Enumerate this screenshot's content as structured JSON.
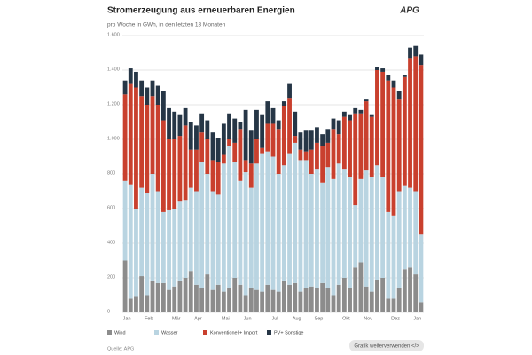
{
  "chart_data": {
    "type": "stacked_bar",
    "title": "Stromerzeugung aus erneuerbaren Energien",
    "subtitle": "pro Woche in GWh, in den letzten 13 Monaten",
    "logo": "APG",
    "source": "Quelle: APG",
    "button": "Grafik weiterverwenden </>",
    "categories": [
      "Jan",
      null,
      null,
      null,
      "Feb",
      null,
      null,
      null,
      null,
      "Mär",
      null,
      null,
      null,
      "Apr",
      null,
      null,
      null,
      null,
      "Mai",
      null,
      null,
      null,
      "Jun",
      null,
      null,
      null,
      null,
      "Jul",
      null,
      null,
      null,
      "Aug",
      null,
      null,
      null,
      "Sep",
      null,
      null,
      null,
      null,
      "Okt",
      null,
      null,
      null,
      "Nov",
      null,
      null,
      null,
      null,
      "Dez",
      null,
      null,
      null,
      "Jan",
      null
    ],
    "series": [
      {
        "name": "Wind",
        "color": "#8c8c8c",
        "values": [
          300,
          80,
          90,
          210,
          100,
          180,
          170,
          170,
          130,
          150,
          180,
          200,
          240,
          160,
          140,
          220,
          130,
          160,
          120,
          140,
          200,
          160,
          100,
          140,
          130,
          120,
          160,
          130,
          120,
          180,
          160,
          170,
          120,
          140,
          150,
          140,
          170,
          140,
          100,
          160,
          200,
          140,
          260,
          290,
          150,
          120,
          190,
          200,
          80,
          80,
          140,
          250,
          260,
          220,
          60
        ]
      },
      {
        "name": "Wasser",
        "color": "#b9d4e1",
        "values": [
          460,
          660,
          510,
          510,
          590,
          620,
          530,
          410,
          460,
          450,
          460,
          450,
          480,
          540,
          730,
          580,
          570,
          520,
          740,
          820,
          670,
          600,
          710,
          580,
          730,
          800,
          770,
          770,
          680,
          670,
          760,
          810,
          760,
          740,
          650,
          690,
          580,
          700,
          670,
          700,
          630,
          640,
          360,
          480,
          670,
          660,
          660,
          580,
          500,
          480,
          560,
          480,
          460,
          480,
          390
        ]
      },
      {
        "name": "Konventionell+ Import",
        "color": "#c9402e",
        "values": [
          500,
          580,
          700,
          530,
          510,
          450,
          500,
          530,
          410,
          400,
          380,
          430,
          220,
          240,
          170,
          200,
          180,
          190,
          50,
          40,
          110,
          300,
          70,
          140,
          140,
          30,
          160,
          190,
          260,
          340,
          320,
          40,
          60,
          50,
          140,
          150,
          210,
          140,
          290,
          170,
          300,
          330,
          530,
          380,
          400,
          350,
          550,
          610,
          760,
          740,
          530,
          630,
          750,
          780,
          980
        ]
      },
      {
        "name": "PV+ Sonstige",
        "color": "#263646",
        "values": [
          80,
          90,
          90,
          90,
          100,
          90,
          110,
          170,
          180,
          160,
          120,
          100,
          160,
          140,
          110,
          110,
          160,
          140,
          180,
          150,
          140,
          40,
          290,
          190,
          170,
          190,
          130,
          90,
          50,
          30,
          80,
          140,
          100,
          120,
          110,
          90,
          70,
          80,
          60,
          80,
          30,
          30,
          30,
          20,
          10,
          10,
          20,
          20,
          30,
          40,
          50,
          10,
          60,
          60,
          60
        ]
      }
    ],
    "ylim": [
      0,
      1600
    ],
    "yticks": [
      0,
      200,
      400,
      600,
      800,
      {
        "value": 1000,
        "label": "1.000"
      },
      {
        "value": 1200,
        "label": "1.200"
      },
      {
        "value": 1400,
        "label": "1.400"
      },
      {
        "value": 1600,
        "label": "1.600"
      }
    ],
    "grid": true
  }
}
